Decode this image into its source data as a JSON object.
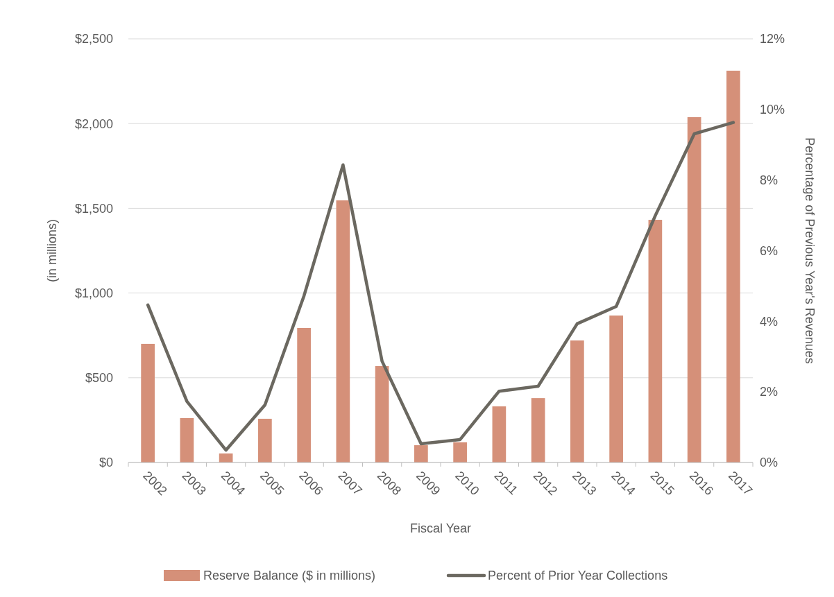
{
  "chart_data": {
    "type": "bar",
    "xlabel": "Fiscal Year",
    "ylabel": "(in millions)",
    "y2label": "Percentage of Previous Year's Revenues",
    "categories": [
      "2002",
      "2003",
      "2004",
      "2005",
      "2006",
      "2007",
      "2008",
      "2009",
      "2010",
      "2011",
      "2012",
      "2013",
      "2014",
      "2015",
      "2016",
      "2017"
    ],
    "series": [
      {
        "name": "Reserve Balance ($ in millions)",
        "color": "#d59079",
        "values": [
          700,
          262,
          53,
          258,
          794,
          1547,
          569,
          102,
          119,
          331,
          380,
          720,
          867,
          1432,
          2038,
          2312
        ]
      },
      {
        "name": "Percent of Prior Year Collections",
        "type": "line",
        "axis": "y2",
        "color": "#6b6860",
        "values": [
          4.46,
          1.73,
          0.35,
          1.63,
          4.72,
          8.43,
          2.87,
          0.53,
          0.65,
          2.02,
          2.16,
          3.93,
          4.42,
          6.99,
          9.31,
          9.63
        ]
      }
    ],
    "ylim": [
      0,
      2500
    ],
    "yticks": [
      {
        "value": 0,
        "label": "$0"
      },
      {
        "value": 500,
        "label": "$500"
      },
      {
        "value": 1000,
        "label": "$1,000"
      },
      {
        "value": 1500,
        "label": "$1,500"
      },
      {
        "value": 2000,
        "label": "$2,000"
      },
      {
        "value": 2500,
        "label": "$2,500"
      }
    ],
    "y2lim": [
      0,
      12
    ],
    "y2ticks": [
      {
        "value": 0,
        "label": "0%"
      },
      {
        "value": 2,
        "label": "2%"
      },
      {
        "value": 4,
        "label": "4%"
      },
      {
        "value": 6,
        "label": "6%"
      },
      {
        "value": 8,
        "label": "8%"
      },
      {
        "value": 10,
        "label": "10%"
      },
      {
        "value": 12,
        "label": "12%"
      }
    ],
    "grid": "y",
    "legend": "bottom",
    "marker": "none",
    "line_style": "solid"
  }
}
